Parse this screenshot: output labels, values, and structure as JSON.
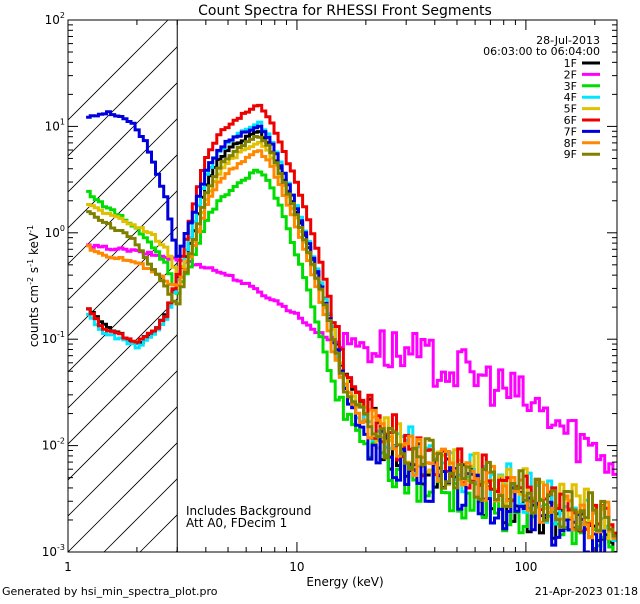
{
  "chart_data": {
    "type": "line",
    "title": "Count Spectra for RHESSI Front Segments",
    "xlabel": "Energy (keV)",
    "ylabel_main": "counts cm",
    "ylabel_exp1": "-2",
    "ylabel_mid": " s",
    "ylabel_exp2": "-1",
    "ylabel_end": " keV",
    "ylabel_exp3": "-1",
    "xscale": "log",
    "yscale": "log",
    "xlim": [
      1,
      250
    ],
    "ylim": [
      0.001,
      100
    ],
    "x_ticks": [
      {
        "value": 1,
        "label": "1"
      },
      {
        "value": 10,
        "label": "10"
      },
      {
        "value": 100,
        "label": "100"
      }
    ],
    "y_ticks": [
      {
        "value": 100,
        "base": "10",
        "exp": "2"
      },
      {
        "value": 10,
        "base": "10",
        "exp": "1"
      },
      {
        "value": 1,
        "base": "10",
        "exp": "0"
      },
      {
        "value": 0.1,
        "base": "10",
        "exp": "-1"
      },
      {
        "value": 0.01,
        "base": "10",
        "exp": "-2"
      },
      {
        "value": 0.001,
        "base": "10",
        "exp": "-3"
      }
    ],
    "hatched_region": {
      "x_min": 1,
      "x_max": 3
    },
    "legend_position": "top-right",
    "info_date": "28-Jul-2013",
    "info_time_range": "06:03:00 to 06:04:00",
    "annotation_lines": [
      "Includes Background",
      "Att A0, FDecim 1"
    ],
    "series": [
      {
        "name": "1F",
        "color": "#000000",
        "points": [
          [
            1.2,
            0.21
          ],
          [
            1.4,
            0.14
          ],
          [
            1.7,
            0.11
          ],
          [
            2.0,
            0.09
          ],
          [
            2.4,
            0.12
          ],
          [
            2.7,
            0.17
          ],
          [
            3.0,
            0.36
          ],
          [
            3.5,
            0.9
          ],
          [
            4.0,
            2.8
          ],
          [
            4.6,
            5.0
          ],
          [
            5.2,
            6.5
          ],
          [
            6.0,
            7.8
          ],
          [
            6.8,
            9.0
          ],
          [
            7.6,
            6.5
          ],
          [
            8.6,
            3.6
          ],
          [
            9.8,
            1.7
          ],
          [
            11.2,
            0.75
          ],
          [
            12.8,
            0.32
          ],
          [
            14.5,
            0.12
          ],
          [
            16.5,
            0.04
          ],
          [
            19,
            0.024
          ],
          [
            22,
            0.014
          ],
          [
            26,
            0.009
          ],
          [
            32,
            0.007
          ],
          [
            40,
            0.0055
          ],
          [
            55,
            0.0042
          ],
          [
            75,
            0.0033
          ],
          [
            100,
            0.0025
          ],
          [
            140,
            0.002
          ],
          [
            200,
            0.0015
          ],
          [
            250,
            0.0013
          ]
        ]
      },
      {
        "name": "2F",
        "color": "#ff00ff",
        "points": [
          [
            1.2,
            0.75
          ],
          [
            1.5,
            0.72
          ],
          [
            1.9,
            0.68
          ],
          [
            2.4,
            0.62
          ],
          [
            3.0,
            0.56
          ],
          [
            3.5,
            0.52
          ],
          [
            4.0,
            0.48
          ],
          [
            5.0,
            0.4
          ],
          [
            6.0,
            0.33
          ],
          [
            7.0,
            0.27
          ],
          [
            8.0,
            0.23
          ],
          [
            10,
            0.17
          ],
          [
            12,
            0.12
          ],
          [
            14,
            0.1
          ],
          [
            17,
            0.095
          ],
          [
            20,
            0.09
          ],
          [
            25,
            0.08
          ],
          [
            32,
            0.07
          ],
          [
            40,
            0.06
          ],
          [
            55,
            0.048
          ],
          [
            70,
            0.04
          ],
          [
            90,
            0.03
          ],
          [
            120,
            0.02
          ],
          [
            150,
            0.014
          ],
          [
            200,
            0.009
          ],
          [
            250,
            0.007
          ]
        ]
      },
      {
        "name": "3F",
        "color": "#00dd00",
        "points": [
          [
            1.2,
            2.5
          ],
          [
            1.5,
            1.7
          ],
          [
            1.9,
            1.2
          ],
          [
            2.3,
            0.8
          ],
          [
            2.7,
            0.5
          ],
          [
            3.0,
            0.27
          ],
          [
            3.5,
            0.55
          ],
          [
            4.0,
            1.3
          ],
          [
            4.6,
            2.0
          ],
          [
            5.2,
            2.6
          ],
          [
            6.0,
            3.3
          ],
          [
            6.8,
            3.9
          ],
          [
            7.6,
            3.0
          ],
          [
            8.6,
            1.6
          ],
          [
            9.8,
            0.7
          ],
          [
            11.2,
            0.3
          ],
          [
            12.8,
            0.1
          ],
          [
            14.5,
            0.035
          ],
          [
            16.5,
            0.018
          ],
          [
            19,
            0.012
          ],
          [
            22,
            0.008
          ],
          [
            26,
            0.006
          ],
          [
            32,
            0.0048
          ],
          [
            40,
            0.004
          ],
          [
            55,
            0.0033
          ],
          [
            75,
            0.0027
          ],
          [
            100,
            0.0022
          ],
          [
            140,
            0.0018
          ],
          [
            200,
            0.0014
          ],
          [
            250,
            0.0012
          ]
        ]
      },
      {
        "name": "4F",
        "color": "#00e5ff",
        "points": [
          [
            1.2,
            0.18
          ],
          [
            1.4,
            0.12
          ],
          [
            1.7,
            0.1
          ],
          [
            2.0,
            0.085
          ],
          [
            2.4,
            0.11
          ],
          [
            2.7,
            0.16
          ],
          [
            3.0,
            0.34
          ],
          [
            3.5,
            1.1
          ],
          [
            4.0,
            3.5
          ],
          [
            4.6,
            6.0
          ],
          [
            5.2,
            7.5
          ],
          [
            6.0,
            9.5
          ],
          [
            6.8,
            11
          ],
          [
            7.6,
            8.0
          ],
          [
            8.6,
            4.2
          ],
          [
            9.8,
            2.0
          ],
          [
            11.2,
            0.85
          ],
          [
            12.8,
            0.33
          ],
          [
            14.5,
            0.11
          ],
          [
            16.5,
            0.03
          ],
          [
            19,
            0.02
          ],
          [
            22,
            0.015
          ],
          [
            26,
            0.011
          ],
          [
            32,
            0.009
          ],
          [
            40,
            0.007
          ],
          [
            55,
            0.0055
          ],
          [
            75,
            0.0045
          ],
          [
            100,
            0.0035
          ],
          [
            140,
            0.0027
          ],
          [
            200,
            0.002
          ],
          [
            250,
            0.0017
          ]
        ]
      },
      {
        "name": "5F",
        "color": "#e0c000",
        "points": [
          [
            1.2,
            1.9
          ],
          [
            1.5,
            1.5
          ],
          [
            1.9,
            1.2
          ],
          [
            2.3,
            1.0
          ],
          [
            2.7,
            0.7
          ],
          [
            3.0,
            0.4
          ],
          [
            3.5,
            0.7
          ],
          [
            4.0,
            2.0
          ],
          [
            4.6,
            3.8
          ],
          [
            5.2,
            5.0
          ],
          [
            6.0,
            6.2
          ],
          [
            6.8,
            7.2
          ],
          [
            7.6,
            5.6
          ],
          [
            8.6,
            3.2
          ],
          [
            9.8,
            1.5
          ],
          [
            11.2,
            0.65
          ],
          [
            12.8,
            0.27
          ],
          [
            14.5,
            0.1
          ],
          [
            16.5,
            0.035
          ],
          [
            19,
            0.022
          ],
          [
            22,
            0.016
          ],
          [
            26,
            0.012
          ],
          [
            32,
            0.009
          ],
          [
            40,
            0.0075
          ],
          [
            55,
            0.006
          ],
          [
            75,
            0.0048
          ],
          [
            100,
            0.0038
          ],
          [
            140,
            0.003
          ],
          [
            200,
            0.0023
          ],
          [
            250,
            0.002
          ]
        ]
      },
      {
        "name": "6F",
        "color": "#ee0000",
        "points": [
          [
            1.2,
            0.21
          ],
          [
            1.4,
            0.13
          ],
          [
            1.7,
            0.11
          ],
          [
            2.0,
            0.095
          ],
          [
            2.4,
            0.12
          ],
          [
            2.7,
            0.17
          ],
          [
            3.0,
            0.37
          ],
          [
            3.5,
            1.6
          ],
          [
            4.0,
            5.0
          ],
          [
            4.6,
            8.5
          ],
          [
            5.2,
            11
          ],
          [
            6.0,
            13.5
          ],
          [
            6.8,
            16.5
          ],
          [
            7.6,
            12
          ],
          [
            8.6,
            6.5
          ],
          [
            9.8,
            3.2
          ],
          [
            11.2,
            1.35
          ],
          [
            12.8,
            0.5
          ],
          [
            14.5,
            0.16
          ],
          [
            16.5,
            0.045
          ],
          [
            19,
            0.026
          ],
          [
            22,
            0.018
          ],
          [
            26,
            0.013
          ],
          [
            32,
            0.0095
          ],
          [
            40,
            0.0075
          ],
          [
            55,
            0.006
          ],
          [
            75,
            0.0048
          ],
          [
            100,
            0.0038
          ],
          [
            140,
            0.003
          ],
          [
            200,
            0.0024
          ],
          [
            250,
            0.002
          ]
        ]
      },
      {
        "name": "7F",
        "color": "#0000dd",
        "points": [
          [
            1.2,
            12.5
          ],
          [
            1.5,
            13.5
          ],
          [
            1.9,
            11
          ],
          [
            2.2,
            7.0
          ],
          [
            2.4,
            4.2
          ],
          [
            2.7,
            2.0
          ],
          [
            3.0,
            0.58
          ],
          [
            3.5,
            1.4
          ],
          [
            4.0,
            3.8
          ],
          [
            4.6,
            6.2
          ],
          [
            5.2,
            7.6
          ],
          [
            6.0,
            8.8
          ],
          [
            6.8,
            10
          ],
          [
            7.6,
            7.6
          ],
          [
            8.6,
            4.0
          ],
          [
            9.8,
            1.9
          ],
          [
            11.2,
            0.8
          ],
          [
            12.8,
            0.3
          ],
          [
            14.5,
            0.1
          ],
          [
            16.5,
            0.03
          ],
          [
            19,
            0.016
          ],
          [
            22,
            0.01
          ],
          [
            26,
            0.007
          ],
          [
            32,
            0.0055
          ],
          [
            40,
            0.0044
          ],
          [
            55,
            0.0035
          ],
          [
            75,
            0.0028
          ],
          [
            100,
            0.0022
          ],
          [
            140,
            0.0017
          ],
          [
            200,
            0.0013
          ],
          [
            250,
            0.0011
          ]
        ]
      },
      {
        "name": "8F",
        "color": "#ff8800",
        "points": [
          [
            1.2,
            0.75
          ],
          [
            1.5,
            0.6
          ],
          [
            1.9,
            0.55
          ],
          [
            2.3,
            0.45
          ],
          [
            2.7,
            0.35
          ],
          [
            3.0,
            0.3
          ],
          [
            3.5,
            0.65
          ],
          [
            4.0,
            1.8
          ],
          [
            4.6,
            3.0
          ],
          [
            5.2,
            4.0
          ],
          [
            6.0,
            5.0
          ],
          [
            6.8,
            6.0
          ],
          [
            7.6,
            4.6
          ],
          [
            8.6,
            2.6
          ],
          [
            9.8,
            1.25
          ],
          [
            11.2,
            0.55
          ],
          [
            12.8,
            0.22
          ],
          [
            14.5,
            0.08
          ],
          [
            16.5,
            0.03
          ],
          [
            19,
            0.019
          ],
          [
            22,
            0.014
          ],
          [
            26,
            0.01
          ],
          [
            32,
            0.008
          ],
          [
            40,
            0.0065
          ],
          [
            55,
            0.0052
          ],
          [
            75,
            0.0042
          ],
          [
            100,
            0.0034
          ],
          [
            140,
            0.0027
          ],
          [
            200,
            0.0021
          ],
          [
            250,
            0.0018
          ]
        ]
      },
      {
        "name": "9F",
        "color": "#808000",
        "points": [
          [
            1.2,
            1.6
          ],
          [
            1.5,
            1.2
          ],
          [
            1.9,
            0.9
          ],
          [
            2.3,
            0.5
          ],
          [
            2.7,
            0.3
          ],
          [
            3.0,
            0.2
          ],
          [
            3.5,
            0.75
          ],
          [
            4.0,
            2.3
          ],
          [
            4.6,
            4.2
          ],
          [
            5.2,
            5.6
          ],
          [
            6.0,
            7.0
          ],
          [
            6.8,
            8.2
          ],
          [
            7.6,
            6.2
          ],
          [
            8.6,
            3.4
          ],
          [
            9.8,
            1.6
          ],
          [
            11.2,
            0.7
          ],
          [
            12.8,
            0.28
          ],
          [
            14.5,
            0.1
          ],
          [
            16.5,
            0.032
          ],
          [
            19,
            0.02
          ],
          [
            22,
            0.015
          ],
          [
            26,
            0.011
          ],
          [
            32,
            0.0085
          ],
          [
            40,
            0.007
          ],
          [
            55,
            0.0056
          ],
          [
            75,
            0.0045
          ],
          [
            100,
            0.0036
          ],
          [
            140,
            0.0028
          ],
          [
            200,
            0.0022
          ],
          [
            250,
            0.0019
          ]
        ]
      }
    ]
  },
  "footer": {
    "left": "Generated by hsi_min_spectra_plot.pro",
    "right": "21-Apr-2023 01:18"
  }
}
